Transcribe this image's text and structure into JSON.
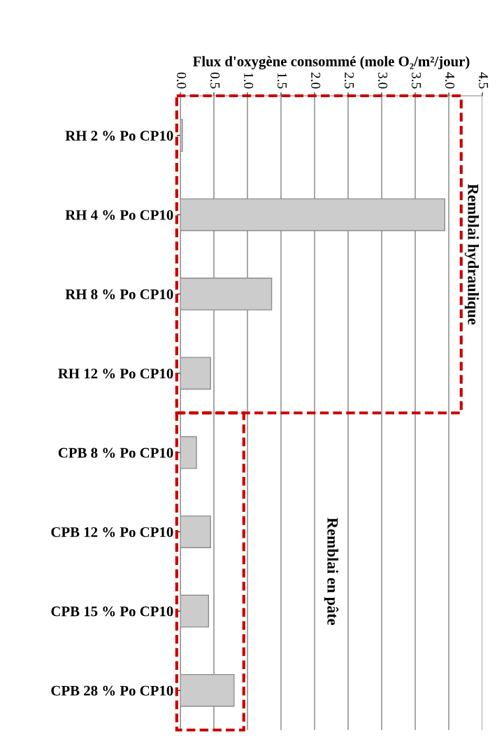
{
  "chart_data": {
    "type": "bar",
    "orientation": "horizontal",
    "xlabel": "Flux d'oxygène consommé (mole O₂/m²/jour)",
    "categories": [
      "RH 2 % Po CP10",
      "RH 4 % Po CP10",
      "RH 8 % Po CP10",
      "RH 12 % Po CP10",
      "CPB 8 % Po CP10",
      "CPB 12 % Po CP10",
      "CPB 15 % Po CP10",
      "CPB 28 % Po CP10"
    ],
    "values": [
      0.03,
      3.94,
      1.36,
      0.45,
      0.24,
      0.45,
      0.42,
      0.8
    ],
    "color": "#cccccc",
    "xlim": [
      0,
      4.5
    ],
    "xticks": [
      {
        "value": 0,
        "label": "0.0"
      },
      {
        "value": 0.5,
        "label": "0.5"
      },
      {
        "value": 1,
        "label": "1.0"
      },
      {
        "value": 1.5,
        "label": "1.5"
      },
      {
        "value": 2,
        "label": "2.0"
      },
      {
        "value": 2.5,
        "label": "2.5"
      },
      {
        "value": 3,
        "label": "3.0"
      },
      {
        "value": 3.5,
        "label": "3.5"
      },
      {
        "value": 4,
        "label": "4.0"
      },
      {
        "value": 4.5,
        "label": "4.5"
      }
    ],
    "grid": "x",
    "annotations": [
      "Remblai hydraulique",
      "Remblai en pâte"
    ]
  }
}
